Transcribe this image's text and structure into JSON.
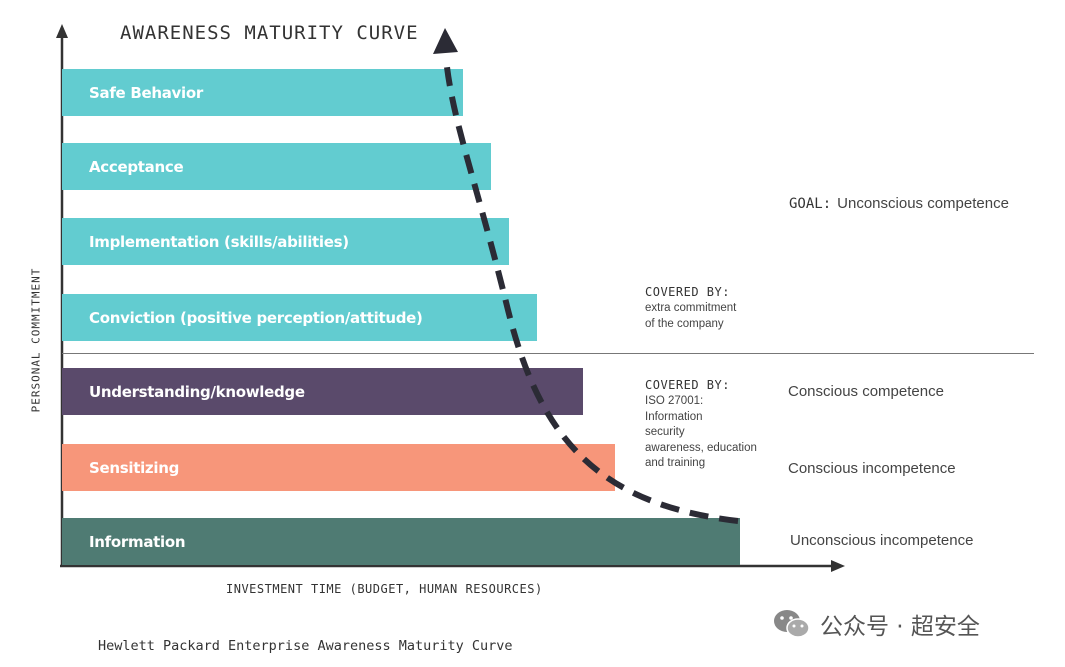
{
  "title": "AWARENESS MATURITY CURVE",
  "y_axis_label": "PERSONAL COMMITMENT",
  "x_axis_label": "INVESTMENT TIME (BUDGET, HUMAN RESOURCES)",
  "bars": [
    {
      "label": "Safe Behavior",
      "color": "#62ccd0"
    },
    {
      "label": "Acceptance",
      "color": "#62ccd0"
    },
    {
      "label": "Implementation (skills/abilities)",
      "color": "#62ccd0"
    },
    {
      "label": "Conviction (positive perception/attitude)",
      "color": "#62ccd0"
    },
    {
      "label": "Understanding/knowledge",
      "color": "#5a4a6b"
    },
    {
      "label": "Sensitizing",
      "color": "#f7967a"
    },
    {
      "label": "Information",
      "color": "#4f7b73"
    }
  ],
  "stages": {
    "goal_prefix": "GOAL:",
    "goal": "Unconscious competence",
    "conscious_competence": "Conscious competence",
    "conscious_incompetence": "Conscious incompetence",
    "unconscious_incompetence": "Unconscious incompetence"
  },
  "covered_upper": {
    "title": "COVERED BY:",
    "lines": [
      "extra commitment",
      "of the company"
    ]
  },
  "covered_lower": {
    "title": "COVERED BY:",
    "lines": [
      "ISO 27001:",
      "Information",
      "security",
      "awareness, education",
      "and training"
    ]
  },
  "caption": "Hewlett Packard Enterprise Awareness Maturity Curve",
  "watermark": "公众号 · 超安全",
  "colors": {
    "axis": "#333333",
    "curve": "#2b2b35"
  }
}
